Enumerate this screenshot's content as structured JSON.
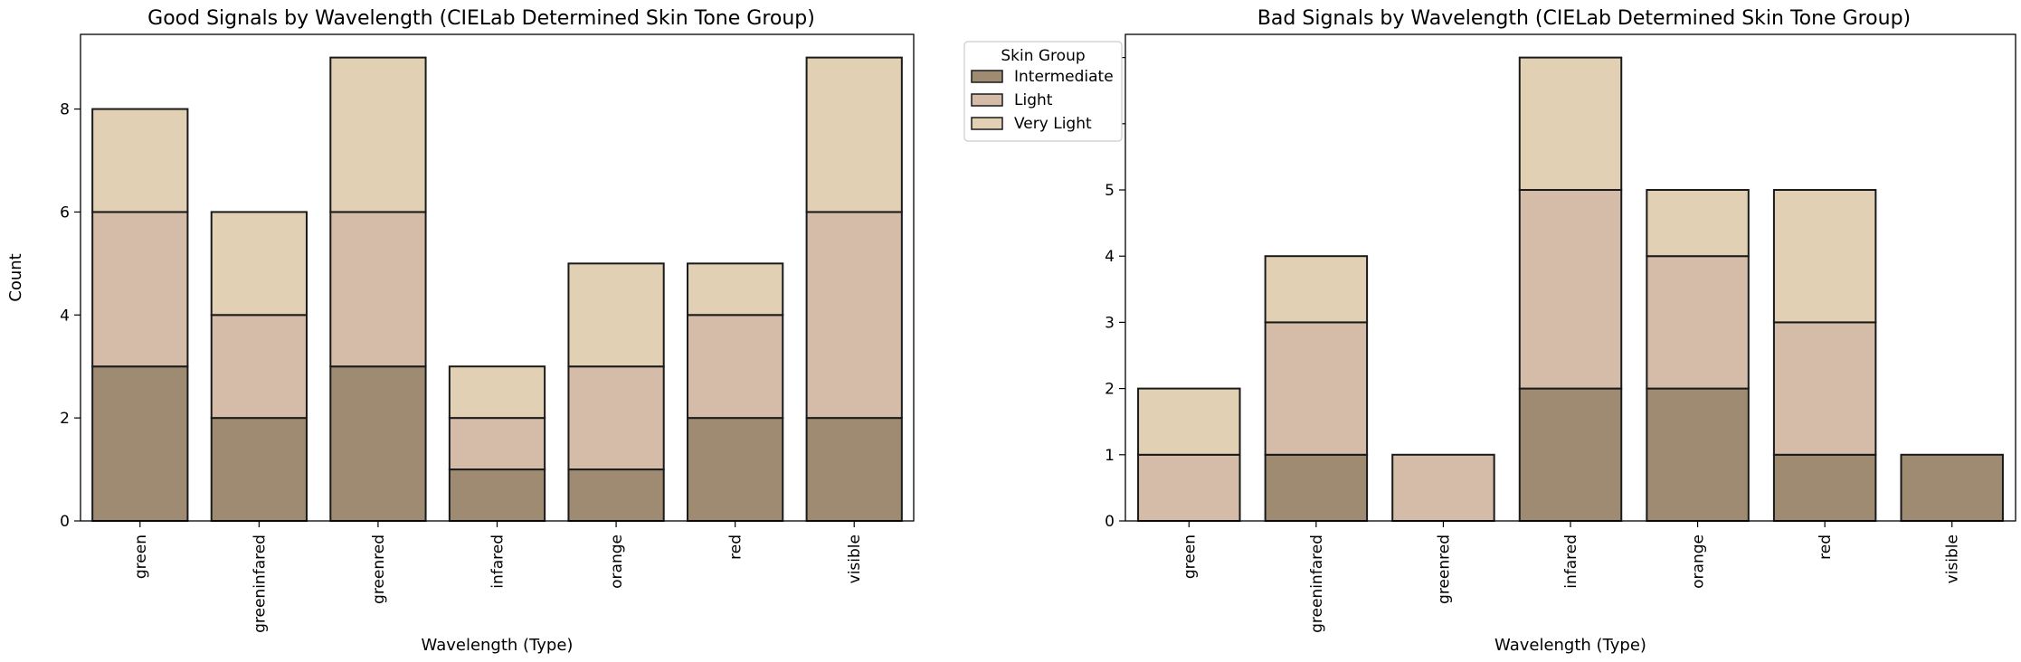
{
  "chart_data": [
    {
      "type": "bar",
      "stacked": true,
      "title": "Good Signals by Wavelength (CIELab Determined Skin Tone Group)",
      "xlabel": "Wavelength (Type)",
      "ylabel": "Count",
      "categories": [
        "green",
        "greeninfared",
        "greenred",
        "infared",
        "orange",
        "red",
        "visible"
      ],
      "ylim": [
        0,
        9.45
      ],
      "yticks": [
        0,
        2,
        4,
        6,
        8
      ],
      "series": [
        {
          "name": "Intermediate",
          "values": [
            3,
            2,
            3,
            1,
            1,
            2,
            2
          ]
        },
        {
          "name": "Light",
          "values": [
            3,
            2,
            3,
            1,
            2,
            2,
            4
          ]
        },
        {
          "name": "Very Light",
          "values": [
            2,
            2,
            3,
            1,
            2,
            1,
            3
          ]
        }
      ],
      "grid": false
    },
    {
      "type": "bar",
      "stacked": true,
      "title": "Bad Signals by Wavelength (CIELab Determined Skin Tone Group)",
      "xlabel": "Wavelength (Type)",
      "ylabel": "",
      "categories": [
        "green",
        "greeninfared",
        "greenred",
        "infared",
        "orange",
        "red",
        "visible"
      ],
      "ylim": [
        0,
        7.35
      ],
      "yticks": [
        0,
        1,
        2,
        3,
        4,
        5,
        6,
        7
      ],
      "series": [
        {
          "name": "Intermediate",
          "values": [
            0,
            1,
            0,
            2,
            2,
            1,
            1
          ]
        },
        {
          "name": "Light",
          "values": [
            1,
            2,
            1,
            3,
            2,
            2,
            0
          ]
        },
        {
          "name": "Very Light",
          "values": [
            1,
            1,
            0,
            2,
            1,
            2,
            0
          ]
        }
      ],
      "grid": false
    }
  ],
  "legend": {
    "title": "Skin Group",
    "placement": "outside-right-of-left-panel",
    "items": [
      "Intermediate",
      "Light",
      "Very Light"
    ]
  },
  "colors": {
    "Intermediate": "#9e8b72",
    "Light": "#d4bca8",
    "Very Light": "#e1d0b4",
    "edge": "#1a1a1a"
  }
}
